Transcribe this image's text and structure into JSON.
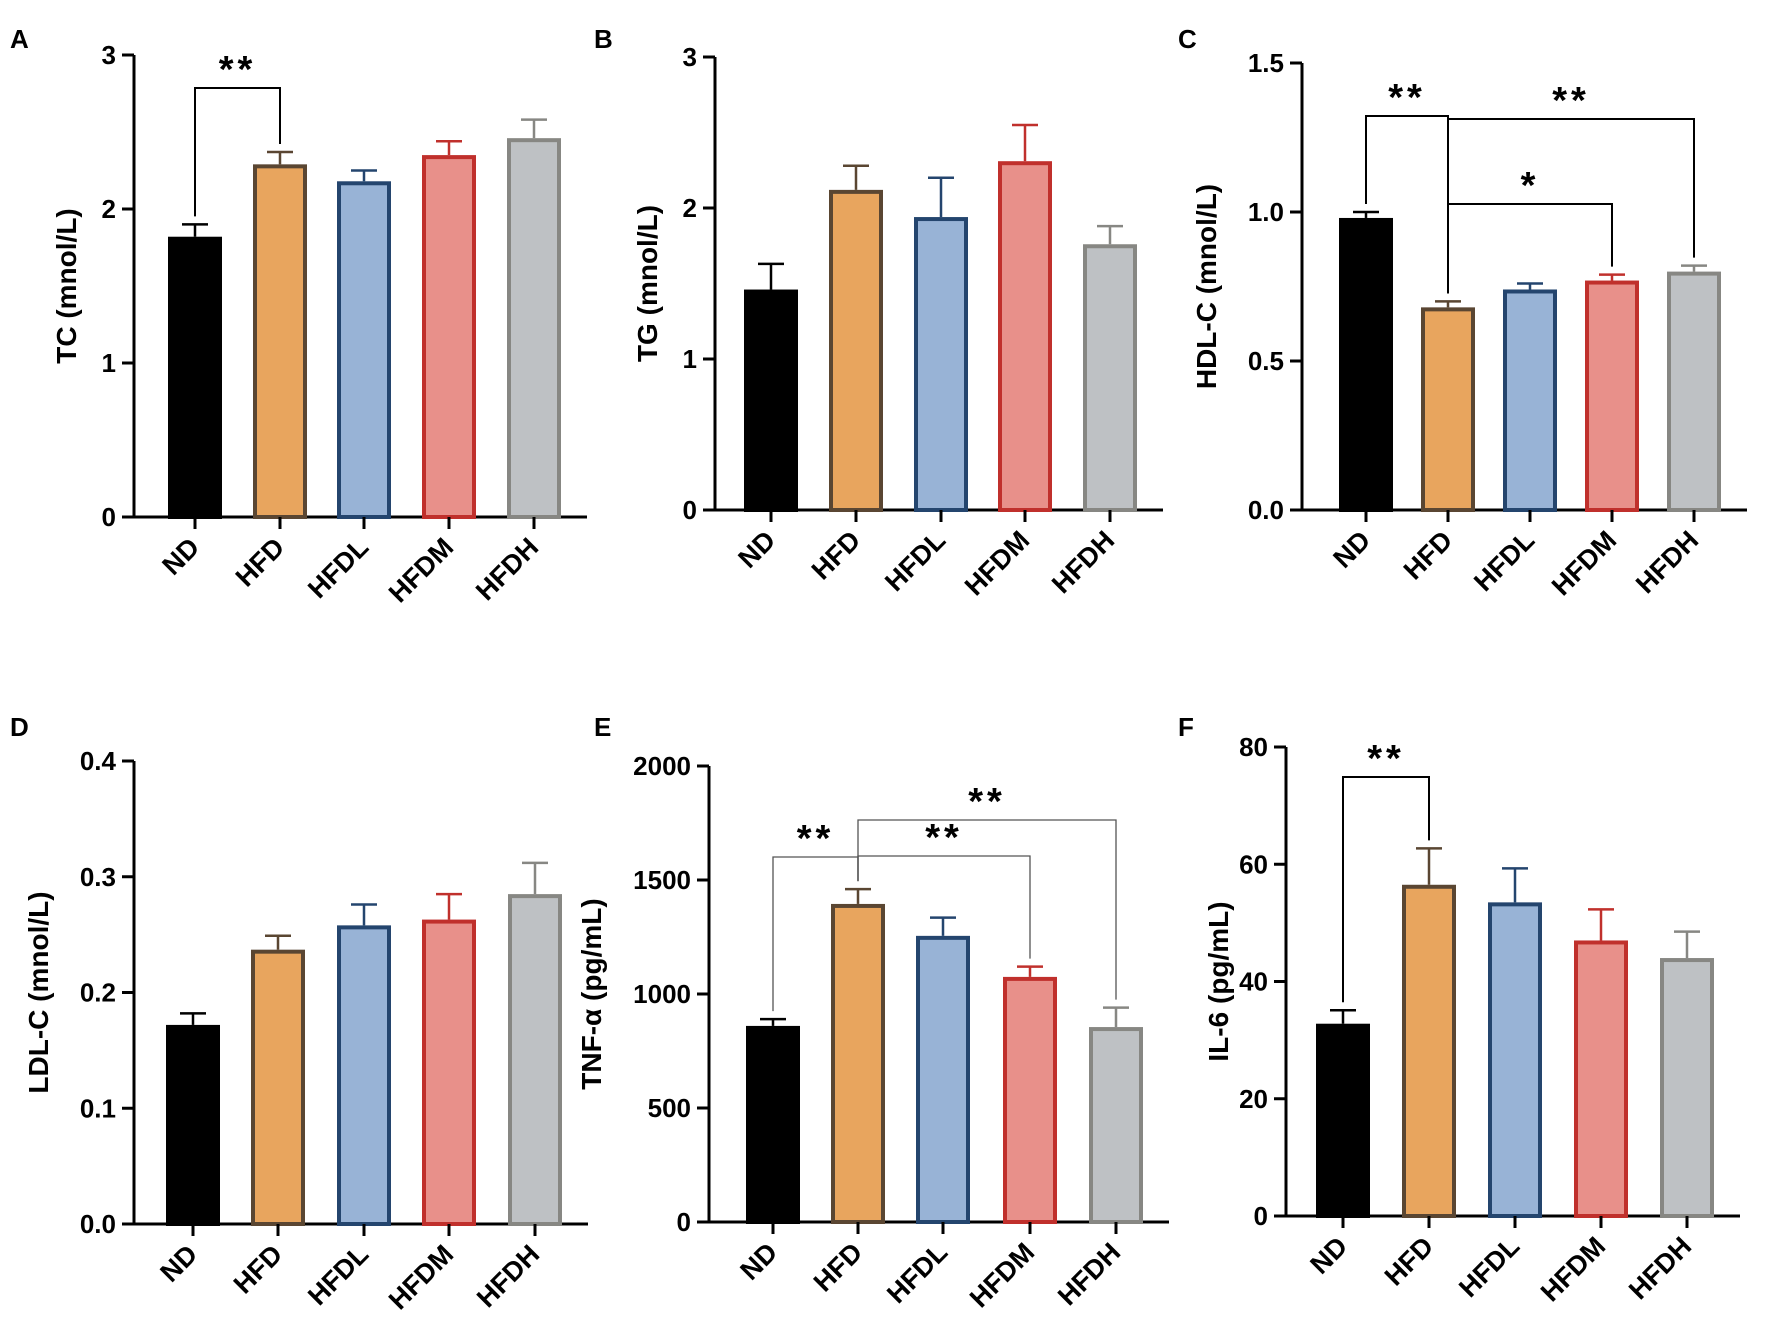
{
  "groups": {
    "ND": {
      "fill": "#000000",
      "stroke": "#000000"
    },
    "HFD": {
      "fill": "#E8A55E",
      "stroke": "#5A4632"
    },
    "HFDL": {
      "fill": "#98B3D6",
      "stroke": "#24456E"
    },
    "HFDM": {
      "fill": "#E8908A",
      "stroke": "#C0302C"
    },
    "HFDH": {
      "fill": "#BEC1C4",
      "stroke": "#878783"
    }
  },
  "chart_data": [
    {
      "panel": "A",
      "type": "bar",
      "ylabel": "TC (mnol/L)",
      "categories": [
        "ND",
        "HFD",
        "HFDL",
        "HFDM",
        "HFDH"
      ],
      "values": [
        1.82,
        2.29,
        2.18,
        2.35,
        2.46
      ],
      "errors": [
        0.08,
        0.08,
        0.07,
        0.09,
        0.12
      ],
      "ylim": [
        0,
        3
      ],
      "yticks": [
        "0",
        "1",
        "2",
        "3"
      ],
      "significance": [
        {
          "from": 0,
          "to": 1,
          "label": "**"
        }
      ]
    },
    {
      "panel": "B",
      "type": "bar",
      "ylabel": "TG (mnol/L)",
      "categories": [
        "ND",
        "HFD",
        "HFDL",
        "HFDM",
        "HFDH"
      ],
      "values": [
        1.46,
        2.12,
        1.94,
        2.31,
        1.76
      ],
      "errors": [
        0.17,
        0.16,
        0.26,
        0.24,
        0.12
      ],
      "ylim": [
        0,
        3
      ],
      "yticks": [
        "0",
        "1",
        "2",
        "3"
      ],
      "significance": []
    },
    {
      "panel": "C",
      "type": "bar",
      "ylabel": "HDL-C (mnol/L)",
      "categories": [
        "ND",
        "HFD",
        "HFDL",
        "HFDM",
        "HFDH"
      ],
      "values": [
        0.98,
        0.68,
        0.74,
        0.77,
        0.8
      ],
      "errors": [
        0.02,
        0.02,
        0.02,
        0.02,
        0.02
      ],
      "ylim": [
        0,
        1.5
      ],
      "yticks": [
        "0.0",
        "0.5",
        "1.0",
        "1.5"
      ],
      "significance": [
        {
          "from": 0,
          "to": 1,
          "label": "**"
        },
        {
          "from": 1,
          "to": 3,
          "label": "*"
        },
        {
          "from": 1,
          "to": 4,
          "label": "**"
        }
      ]
    },
    {
      "panel": "D",
      "type": "bar",
      "ylabel": "LDL-C (mnol/L)",
      "categories": [
        "ND",
        "HFD",
        "HFDL",
        "HFDM",
        "HFDH"
      ],
      "values": [
        0.172,
        0.237,
        0.258,
        0.263,
        0.285
      ],
      "errors": [
        0.01,
        0.012,
        0.018,
        0.022,
        0.027
      ],
      "ylim": [
        0,
        0.4
      ],
      "yticks": [
        "0.0",
        "0.1",
        "0.2",
        "0.3",
        "0.4"
      ],
      "significance": []
    },
    {
      "panel": "E",
      "type": "bar",
      "ylabel": "TNF-α (pg/mL)",
      "categories": [
        "ND",
        "HFD",
        "HFDL",
        "HFDM",
        "HFDH"
      ],
      "values": [
        860,
        1395,
        1255,
        1075,
        855
      ],
      "errors": [
        30,
        65,
        80,
        45,
        85
      ],
      "ylim": [
        0,
        2000
      ],
      "yticks": [
        "0",
        "500",
        "1000",
        "1500",
        "2000"
      ],
      "significance": [
        {
          "from": 0,
          "to": 1,
          "label": "**"
        },
        {
          "from": 1,
          "to": 3,
          "label": "**"
        },
        {
          "from": 1,
          "to": 4,
          "label": "**"
        }
      ]
    },
    {
      "panel": "F",
      "type": "bar",
      "ylabel": "IL-6 (pg/mL)",
      "categories": [
        "ND",
        "HFD",
        "HFDL",
        "HFDM",
        "HFDH"
      ],
      "values": [
        32.8,
        56.5,
        53.5,
        47.0,
        44.0
      ],
      "errors": [
        2.3,
        6.2,
        5.8,
        5.3,
        4.5
      ],
      "ylim": [
        0,
        80
      ],
      "yticks": [
        "0",
        "20",
        "40",
        "60",
        "80"
      ],
      "significance": [
        {
          "from": 0,
          "to": 1,
          "label": "**"
        }
      ]
    }
  ]
}
